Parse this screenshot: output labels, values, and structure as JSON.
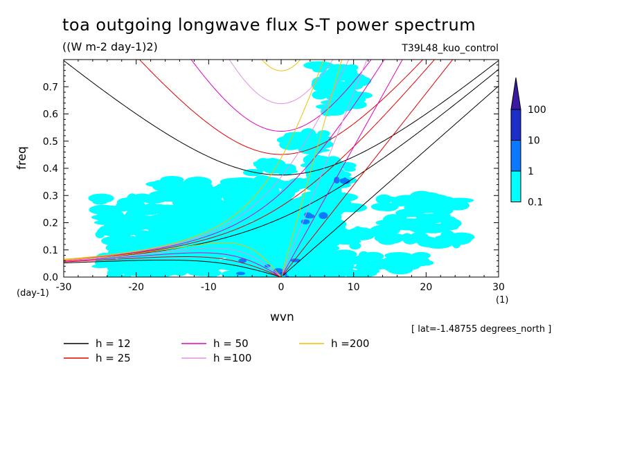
{
  "title": "toa outgoing longwave flux S-T power spectrum",
  "units_label": "((W m-2 day-1)2)",
  "case_label": "T39L48_kuo_control",
  "lat_note": "[ lat=-1.48755 degrees_north ]",
  "chart_data": {
    "type": "heatmap",
    "xlabel": "wvn",
    "x_unit": "(1)",
    "ylabel": "freq",
    "y_unit": "(day-1)",
    "xlim": [
      -30,
      30
    ],
    "ylim": [
      0,
      0.8
    ],
    "x_ticks": [
      -30,
      -20,
      -10,
      0,
      10,
      20,
      30
    ],
    "x_tick_labels": [
      "-30",
      "-20",
      "-10",
      "0",
      "10",
      "20",
      "30"
    ],
    "y_ticks": [
      0,
      0.1,
      0.2,
      0.3,
      0.4,
      0.5,
      0.6,
      0.7
    ],
    "y_tick_labels": [
      "0.0",
      "0.1",
      "0.2",
      "0.3",
      "0.4",
      "0.5",
      "0.6",
      "0.7"
    ],
    "colorbar": {
      "levels": [
        0.1,
        1,
        10,
        100
      ],
      "level_labels": [
        "0.1",
        "1",
        "10",
        "100"
      ],
      "colors": [
        "#00ffff",
        "#0a78ff",
        "#1c2ec8",
        "#3a1a9e"
      ]
    },
    "contour_fills": [
      {
        "level": "0.1",
        "color": "#00ffff",
        "regions": [
          {
            "x": [
              -25,
              6
            ],
            "y": [
              0.0,
              0.3
            ]
          },
          {
            "x": [
              -17,
              8
            ],
            "y": [
              0.1,
              0.36
            ]
          },
          {
            "x": [
              -4,
              12
            ],
            "y": [
              0.0,
              0.17
            ]
          },
          {
            "x": [
              -23,
              4
            ],
            "y": [
              0.02,
              0.22
            ]
          },
          {
            "x": [
              -4,
              1
            ],
            "y": [
              0.38,
              0.42
            ]
          },
          {
            "x": [
              4,
              10
            ],
            "y": [
              0.25,
              0.44
            ]
          },
          {
            "x": [
              1,
              6
            ],
            "y": [
              0.46,
              0.53
            ]
          },
          {
            "x": [
              5,
              11
            ],
            "y": [
              0.6,
              0.78
            ]
          },
          {
            "x": [
              14,
              25
            ],
            "y": [
              0.12,
              0.3
            ]
          },
          {
            "x": [
              12,
              20
            ],
            "y": [
              0.02,
              0.08
            ]
          }
        ]
      },
      {
        "level": "1",
        "color": "#0a78ff",
        "regions": [
          {
            "x": [
              -6,
              2
            ],
            "y": [
              0.01,
              0.08
            ]
          },
          {
            "x": [
              3,
              6
            ],
            "y": [
              0.2,
              0.23
            ]
          },
          {
            "x": [
              7,
              9
            ],
            "y": [
              0.34,
              0.37
            ]
          },
          {
            "x": [
              -2,
              1
            ],
            "y": [
              0.0,
              0.03
            ]
          }
        ]
      }
    ],
    "series": [
      {
        "name": "h = 12",
        "h": 12,
        "color": "#000000"
      },
      {
        "name": "h = 25",
        "h": 25,
        "color": "#e00000"
      },
      {
        "name": "h = 50",
        "h": 50,
        "color": "#e000c0"
      },
      {
        "name": "h =100",
        "h": 100,
        "color": "#e090e0"
      },
      {
        "name": "h =200",
        "h": 200,
        "color": "#f0c000"
      }
    ]
  }
}
